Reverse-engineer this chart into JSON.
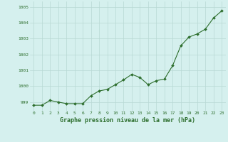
{
  "x": [
    0,
    1,
    2,
    3,
    4,
    5,
    6,
    7,
    8,
    9,
    10,
    11,
    12,
    13,
    14,
    15,
    16,
    17,
    18,
    19,
    20,
    21,
    22,
    23
  ],
  "y": [
    998.8,
    998.8,
    999.1,
    999.0,
    998.9,
    998.9,
    998.9,
    999.4,
    999.7,
    999.8,
    1000.1,
    1000.4,
    1000.75,
    1000.55,
    1000.1,
    1000.35,
    1000.45,
    1001.3,
    1002.55,
    1003.1,
    1003.3,
    1003.6,
    1004.3,
    1004.75
  ],
  "line_color": "#2d6e2d",
  "marker_color": "#2d6e2d",
  "bg_color": "#d5f0ee",
  "grid_color": "#b8d8d4",
  "xlabel": "Graphe pression niveau de la mer (hPa)",
  "xlabel_color": "#2d6e2d",
  "ytick_labels": [
    "999",
    "1000",
    "1001",
    "1002",
    "1003",
    "1004",
    "1005"
  ],
  "ytick_values": [
    999,
    1000,
    1001,
    1002,
    1003,
    1004,
    1005
  ],
  "ylim": [
    998.45,
    1005.35
  ],
  "xlim": [
    -0.5,
    23.5
  ],
  "xtick_values": [
    0,
    1,
    2,
    3,
    4,
    5,
    6,
    7,
    8,
    9,
    10,
    11,
    12,
    13,
    14,
    15,
    16,
    17,
    18,
    19,
    20,
    21,
    22,
    23
  ],
  "figsize": [
    3.2,
    2.0
  ],
  "dpi": 100
}
